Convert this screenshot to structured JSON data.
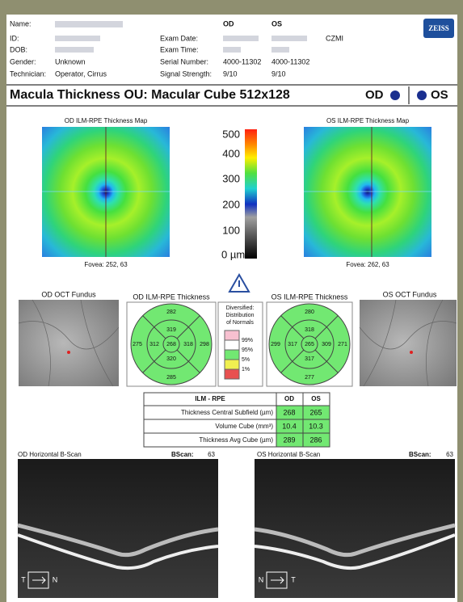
{
  "patient": {
    "name_label": "Name:",
    "id_label": "ID:",
    "dob_label": "DOB:",
    "gender_label": "Gender:",
    "gender": "Unknown",
    "technician_label": "Technician:",
    "technician": "Operator, Cirrus"
  },
  "exam": {
    "od": "OD",
    "os": "OS",
    "date_label": "Exam Date:",
    "time_label": "Exam Time:",
    "serial_label": "Serial Number:",
    "serial_od": "4000-11302",
    "serial_os": "4000-11302",
    "signal_label": "Signal Strength:",
    "signal_od": "9/10",
    "signal_os": "9/10",
    "site": "CZMI"
  },
  "logo": "ZEISS",
  "title": "Macula Thickness OU: Macular Cube 512x128",
  "title_od": "OD",
  "title_os": "OS",
  "maps": [
    {
      "title": "OD ILM-RPE Thickness Map",
      "fovea": "Fovea: 252, 63"
    },
    {
      "title": "OS ILM-RPE Thickness Map",
      "fovea": "Fovea: 262, 63"
    }
  ],
  "scale": [
    500,
    400,
    300,
    200,
    100,
    "0 µm"
  ],
  "fundus": [
    "OD OCT Fundus",
    "OS OCT Fundus"
  ],
  "grids": [
    {
      "title": "OD ILM-RPE Thickness",
      "values": [
        282,
        319,
        275,
        312,
        268,
        318,
        298,
        320,
        285
      ]
    },
    {
      "title": "OS ILM-RPE Thickness",
      "values": [
        280,
        318,
        299,
        317,
        265,
        309,
        271,
        317,
        277
      ]
    }
  ],
  "legend": {
    "title": [
      "Diversified:",
      "Distribution",
      "of Normals"
    ],
    "levels": [
      "99%",
      "95%",
      "5%",
      "1%"
    ]
  },
  "table": {
    "header": [
      "ILM - RPE",
      "OD",
      "OS"
    ],
    "rows": [
      [
        "Thickness Central Subfield (µm)",
        268,
        265
      ],
      [
        "Volume Cube (mm³)",
        10.4,
        10.3
      ],
      [
        "Thickness Avg Cube (µm)",
        289,
        286
      ]
    ]
  },
  "bscans": [
    {
      "title": "OD Horizontal B-Scan",
      "label": "BScan:",
      "number": 63,
      "left": "T",
      "right": "N"
    },
    {
      "title": "OS Horizontal B-Scan",
      "label": "BScan:",
      "number": 63,
      "left": "N",
      "right": "T"
    }
  ]
}
